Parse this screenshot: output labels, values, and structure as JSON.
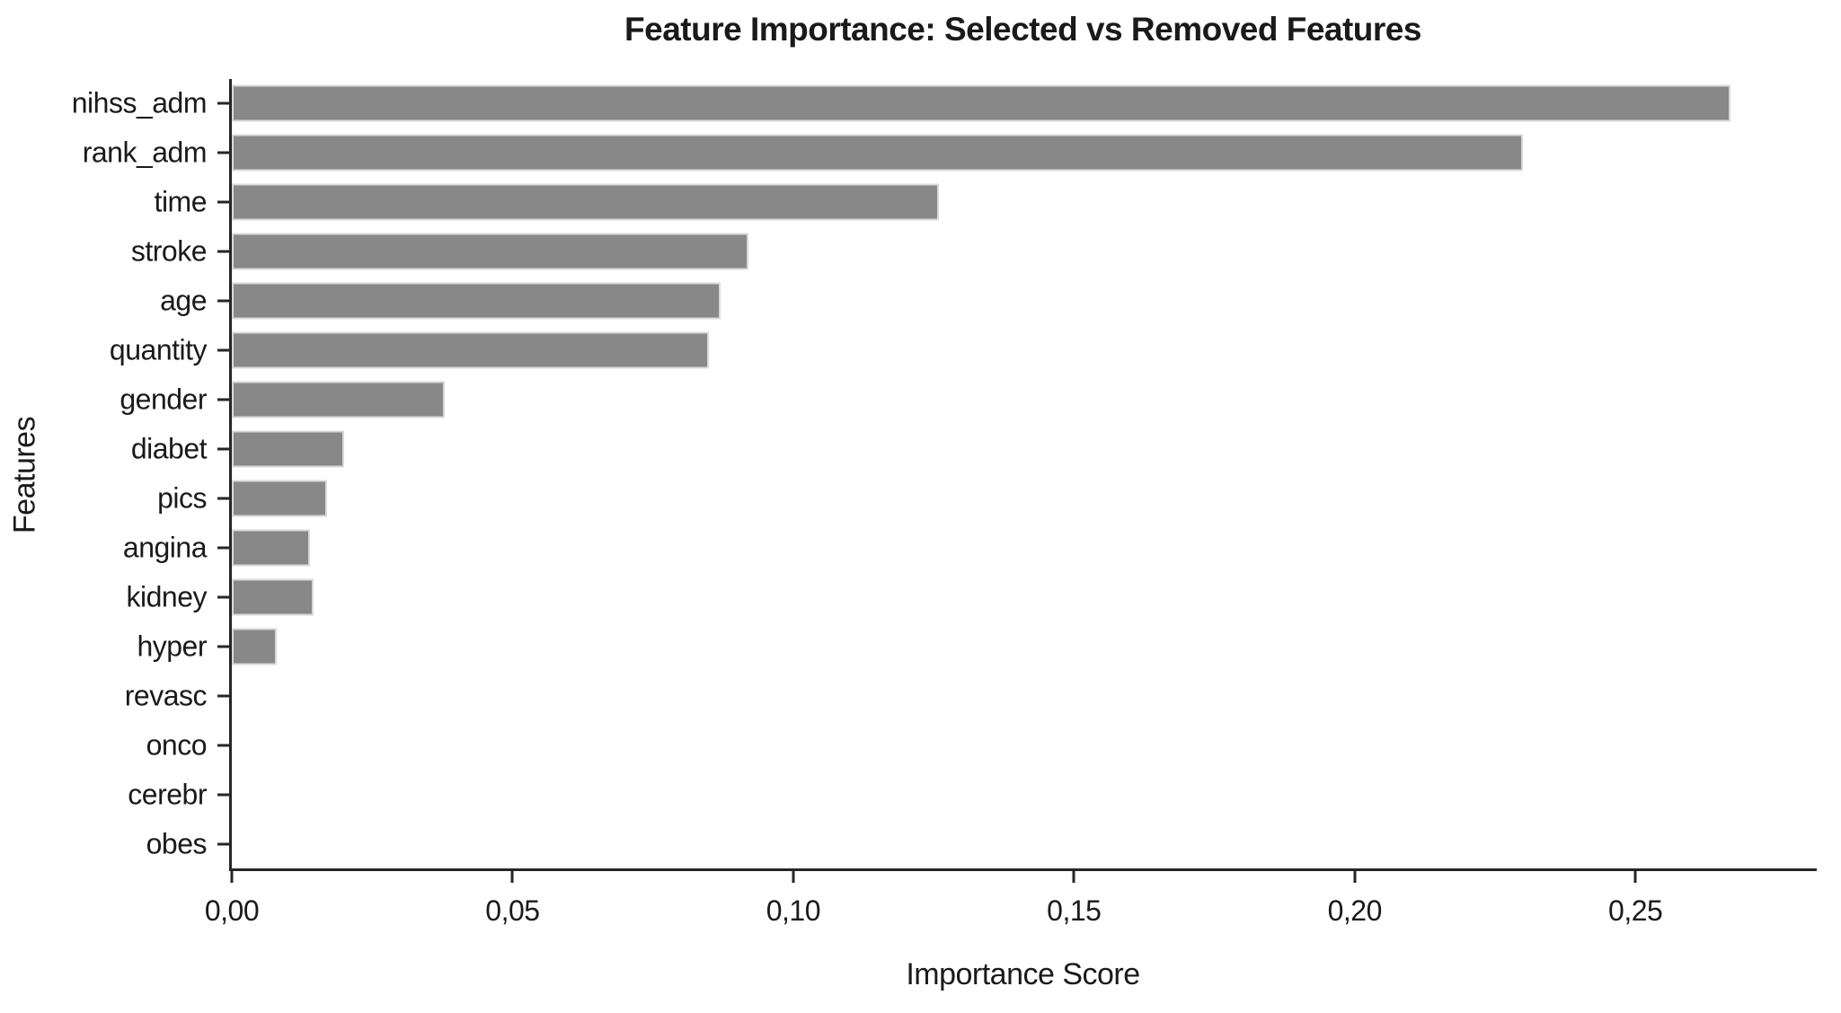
{
  "chart_data": {
    "type": "bar",
    "orientation": "horizontal",
    "title": "Feature Importance: Selected vs Removed Features",
    "xlabel": "Importance Score",
    "ylabel": "Features",
    "categories": [
      "nihss_adm",
      "rank_adm",
      "time",
      "stroke",
      "age",
      "quantity",
      "gender",
      "diabet",
      "pics",
      "angina",
      "kidney",
      "hyper",
      "revasc",
      "onco",
      "cerebr",
      "obes"
    ],
    "values": [
      0.267,
      0.23,
      0.126,
      0.092,
      0.087,
      0.085,
      0.038,
      0.02,
      0.017,
      0.014,
      0.0145,
      0.008,
      0.0,
      0.0,
      0.0,
      0.0
    ],
    "xlim": [
      0,
      0.2823
    ],
    "xticks": {
      "values": [
        0.0,
        0.05,
        0.1,
        0.15,
        0.2,
        0.25
      ],
      "labels": [
        "0,00",
        "0,05",
        "0,10",
        "0,15",
        "0,20",
        "0,25"
      ]
    },
    "grid": false,
    "legend": null,
    "decimal_separator": ",",
    "colors": {
      "bar_fill": "#888888",
      "bar_edge": "#d9d9d9",
      "axis": "#262626",
      "text": "#1a1a1a",
      "background": "#ffffff"
    }
  }
}
